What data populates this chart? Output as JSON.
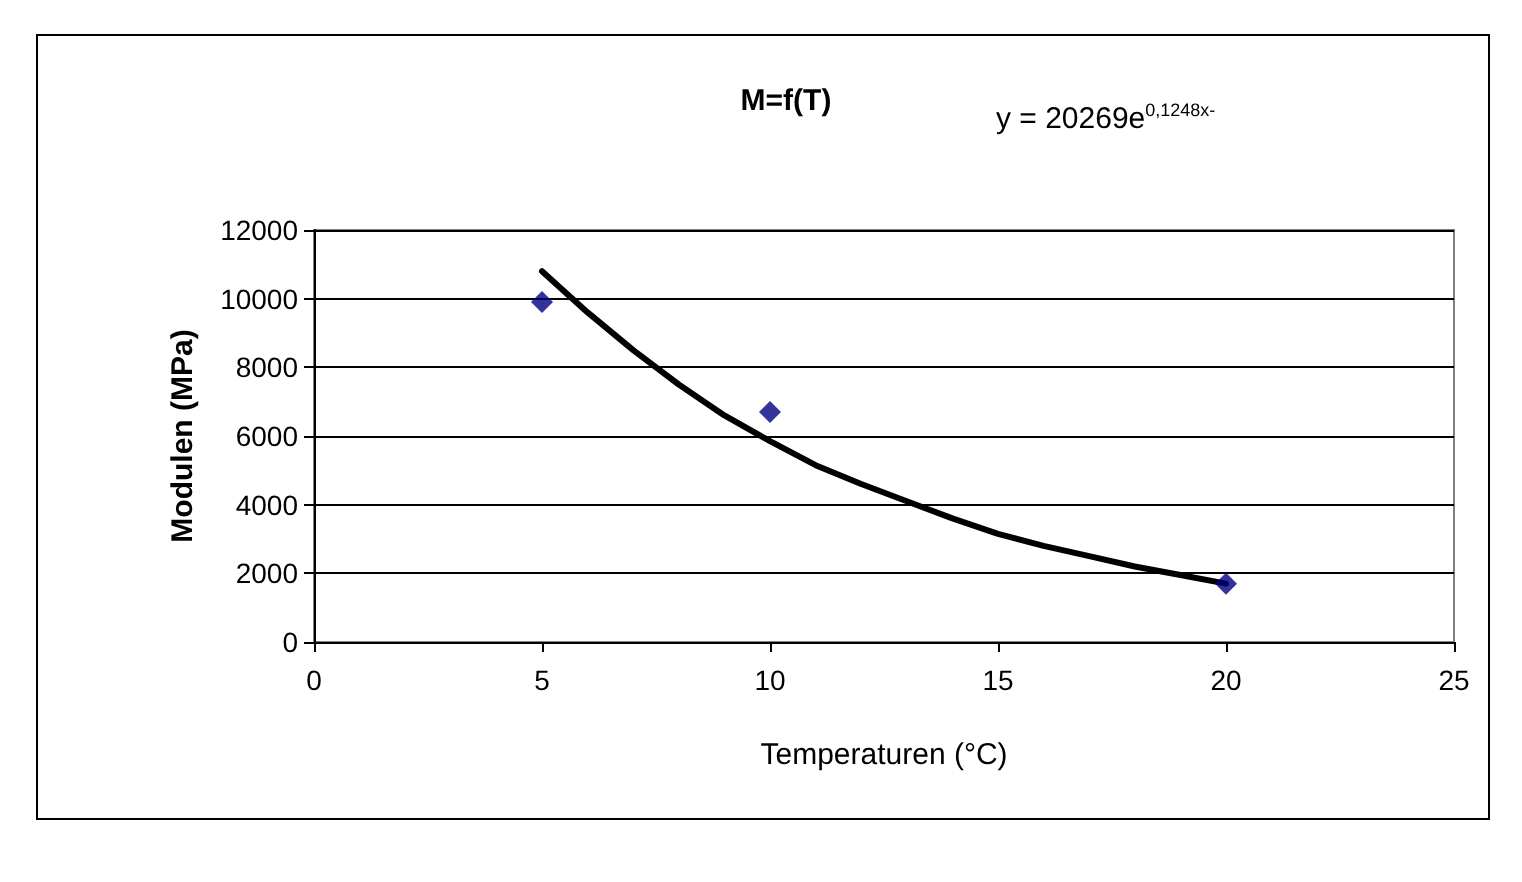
{
  "chart_data": {
    "type": "scatter",
    "title": "M=f(T)",
    "xlabel": "Temperaturen (°C)",
    "ylabel": "Modulen (MPa)",
    "annotations": [
      "y = 20269e$^{0,1248x-}$"
    ],
    "series": [
      {
        "color": "#000080",
        "x": [
          5,
          10,
          20
        ],
        "values": [
          9900,
          6700,
          1700
        ],
        "marker": "diamond"
      },
      {
        "type": "line",
        "color": "#000000",
        "x": [
          5,
          6,
          7,
          8,
          9,
          10,
          11,
          12,
          13,
          14,
          15,
          16,
          17,
          18,
          19,
          20
        ],
        "values": [
          10800,
          9600,
          8500,
          7500,
          6600,
          5850,
          5150,
          4600,
          4100,
          3600,
          3150,
          2800,
          2500,
          2200,
          1950,
          1700
        ],
        "marker": "none",
        "line_style": "solid"
      }
    ],
    "xlim": [
      0,
      25
    ],
    "xticks": [
      0,
      5,
      10,
      15,
      20,
      25
    ],
    "ylim": [
      0,
      12000
    ],
    "yticks": [
      0,
      2000,
      4000,
      6000,
      8000,
      10000,
      12000
    ],
    "grid": "y"
  }
}
